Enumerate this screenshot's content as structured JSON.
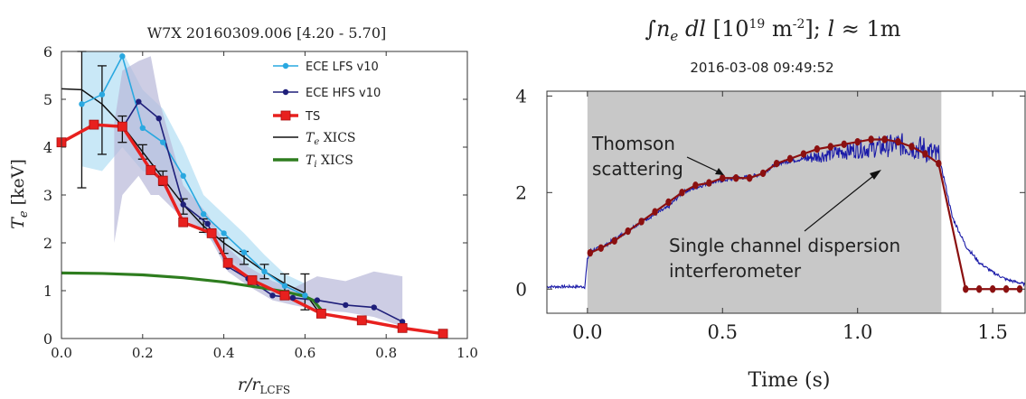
{
  "chart_data": [
    {
      "type": "line",
      "title": "W7X 20160309.006 [4.20 - 5.70]",
      "xlabel": "r/r_LCFS",
      "ylabel": "T_e [keV]",
      "xlim": [
        0.0,
        1.0
      ],
      "ylim": [
        0,
        6
      ],
      "xticks": [
        "0.0",
        "0.2",
        "0.4",
        "0.6",
        "0.8",
        "1.0"
      ],
      "yticks": [
        "0",
        "1",
        "2",
        "3",
        "4",
        "5",
        "6"
      ],
      "legend_position": "top-right",
      "colors": {
        "ece_lfs": "#29a8e0",
        "ece_hfs": "#1f1f7a",
        "ts": "#e8201e",
        "te_xics": "#111111",
        "ti_xics": "#2e7d1f",
        "lfs_band": "#bfe4f6",
        "hfs_band": "#b8b8d8"
      },
      "series": [
        {
          "name": "ECE LFS v10",
          "x": [
            0.05,
            0.1,
            0.15,
            0.2,
            0.25,
            0.3,
            0.35,
            0.4,
            0.45,
            0.5,
            0.55,
            0.6
          ],
          "y": [
            4.9,
            5.1,
            5.9,
            4.4,
            4.1,
            3.4,
            2.6,
            2.2,
            1.8,
            1.4,
            1.1,
            0.9
          ]
        },
        {
          "name": "ECE HFS v10",
          "x": [
            0.15,
            0.19,
            0.24,
            0.3,
            0.36,
            0.41,
            0.46,
            0.52,
            0.57,
            0.63,
            0.7,
            0.77,
            0.84
          ],
          "y": [
            4.4,
            4.95,
            4.6,
            2.8,
            2.4,
            1.5,
            1.25,
            0.9,
            0.85,
            0.8,
            0.7,
            0.65,
            0.35
          ]
        },
        {
          "name": "TS",
          "x": [
            0.0,
            0.08,
            0.15,
            0.22,
            0.25,
            0.3,
            0.37,
            0.41,
            0.47,
            0.55,
            0.64,
            0.74,
            0.84,
            0.94
          ],
          "y": [
            4.1,
            4.47,
            4.43,
            3.52,
            3.3,
            2.43,
            2.2,
            1.58,
            1.22,
            0.9,
            0.52,
            0.38,
            0.22,
            0.1
          ]
        },
        {
          "name": "T_e XICS",
          "x": [
            0.0,
            0.05,
            0.1,
            0.15,
            0.2,
            0.25,
            0.3,
            0.35,
            0.4,
            0.45,
            0.5,
            0.55,
            0.6,
            0.63
          ],
          "y": [
            5.22,
            5.2,
            4.9,
            4.45,
            3.9,
            3.35,
            2.8,
            2.35,
            2.0,
            1.7,
            1.4,
            1.15,
            0.95,
            0.6
          ]
        },
        {
          "name": "T_i XICS",
          "x": [
            0.0,
            0.1,
            0.2,
            0.3,
            0.4,
            0.5,
            0.55,
            0.6,
            0.62,
            0.64
          ],
          "y": [
            1.37,
            1.36,
            1.33,
            1.27,
            1.18,
            1.05,
            0.98,
            0.88,
            0.8,
            0.6
          ]
        }
      ],
      "xics_error_bars": {
        "x": [
          0.05,
          0.1,
          0.15,
          0.2,
          0.25,
          0.3,
          0.35,
          0.4,
          0.45,
          0.5,
          0.55,
          0.6
        ],
        "low": [
          3.15,
          3.85,
          4.1,
          3.75,
          3.2,
          2.6,
          2.22,
          1.78,
          1.55,
          1.25,
          1.0,
          0.6
        ],
        "high": [
          6.0,
          5.7,
          4.65,
          4.05,
          3.5,
          2.92,
          2.5,
          2.1,
          1.82,
          1.55,
          1.35,
          1.35
        ]
      },
      "ece_lfs_band": {
        "x": [
          0.05,
          0.1,
          0.15,
          0.2,
          0.25,
          0.3,
          0.35,
          0.4,
          0.45,
          0.5,
          0.55,
          0.6
        ],
        "low": [
          3.6,
          3.5,
          4.0,
          3.5,
          3.4,
          2.8,
          2.2,
          1.8,
          1.4,
          1.1,
          0.85,
          0.65
        ],
        "high": [
          6.0,
          6.0,
          6.0,
          5.2,
          4.8,
          4.0,
          3.0,
          2.6,
          2.2,
          1.75,
          1.35,
          1.15
        ]
      },
      "ece_hfs_band": {
        "x": [
          0.13,
          0.15,
          0.19,
          0.22,
          0.24,
          0.3,
          0.36,
          0.41,
          0.46,
          0.52,
          0.57,
          0.63,
          0.7,
          0.77,
          0.84
        ],
        "low": [
          2.0,
          3.0,
          3.4,
          3.0,
          3.0,
          2.5,
          2.2,
          1.4,
          1.1,
          0.8,
          0.7,
          0.6,
          0.55,
          0.45,
          0.25
        ],
        "high": [
          4.5,
          5.6,
          5.8,
          5.9,
          5.0,
          3.2,
          2.6,
          1.9,
          1.5,
          1.2,
          1.05,
          1.3,
          1.2,
          1.4,
          1.3
        ]
      }
    },
    {
      "type": "line",
      "title": "∫n_e dl [10^19 m^-2]; l ≈ 1m",
      "subtitle": "2016-03-08 09:49:52",
      "xlabel": "Time (s)",
      "ylabel": "",
      "xlim": [
        -0.15,
        1.62
      ],
      "ylim": [
        -0.5,
        4.1
      ],
      "xticks": [
        "0.0",
        "0.5",
        "1.0",
        "1.5"
      ],
      "yticks": [
        "0",
        "2",
        "4"
      ],
      "shaded_region": {
        "x_start": 0.0,
        "x_end": 1.31,
        "color": "#c8c8c8"
      },
      "annotations": [
        {
          "text": "Thomson scattering",
          "lines": [
            "Thomson",
            "scattering"
          ],
          "arrow_to": [
            0.48,
            2.38
          ]
        },
        {
          "text": "Single channel dispersion interferometer",
          "lines": [
            "Single channel dispersion",
            "interferometer"
          ],
          "arrow_to": [
            1.08,
            2.55
          ]
        }
      ],
      "colors": {
        "interferometer": "#1a1aa8",
        "thomson": "#8b1010"
      },
      "series": [
        {
          "name": "Single channel dispersion interferometer",
          "x": [
            -0.15,
            -0.01,
            0.0,
            0.01,
            0.05,
            0.12,
            0.2,
            0.3,
            0.35,
            0.45,
            0.55,
            0.6,
            0.65,
            0.7,
            0.8,
            0.9,
            1.0,
            1.1,
            1.15,
            1.2,
            1.25,
            1.3,
            1.32,
            1.35,
            1.4,
            1.45,
            1.5,
            1.55,
            1.62
          ],
          "y": [
            0.05,
            0.05,
            0.6,
            0.8,
            0.85,
            1.1,
            1.4,
            1.7,
            2.0,
            2.2,
            2.3,
            2.32,
            2.4,
            2.6,
            2.7,
            2.8,
            2.9,
            2.95,
            3.0,
            2.95,
            2.9,
            2.7,
            2.3,
            1.5,
            0.9,
            0.55,
            0.35,
            0.2,
            0.1
          ]
        },
        {
          "name": "Thomson scattering",
          "x": [
            0.01,
            0.05,
            0.1,
            0.15,
            0.2,
            0.25,
            0.3,
            0.35,
            0.4,
            0.45,
            0.5,
            0.55,
            0.6,
            0.65,
            0.7,
            0.75,
            0.8,
            0.85,
            0.9,
            0.95,
            1.0,
            1.05,
            1.1,
            1.15,
            1.2,
            1.25,
            1.3,
            1.4,
            1.45,
            1.5,
            1.55,
            1.6
          ],
          "y": [
            0.75,
            0.85,
            1.0,
            1.2,
            1.4,
            1.6,
            1.8,
            2.0,
            2.15,
            2.2,
            2.3,
            2.3,
            2.3,
            2.4,
            2.6,
            2.7,
            2.8,
            2.9,
            2.95,
            3.0,
            3.05,
            3.1,
            3.1,
            3.05,
            2.95,
            2.8,
            2.6,
            0.0,
            0.0,
            0.0,
            0.0,
            0.0
          ]
        }
      ]
    }
  ]
}
